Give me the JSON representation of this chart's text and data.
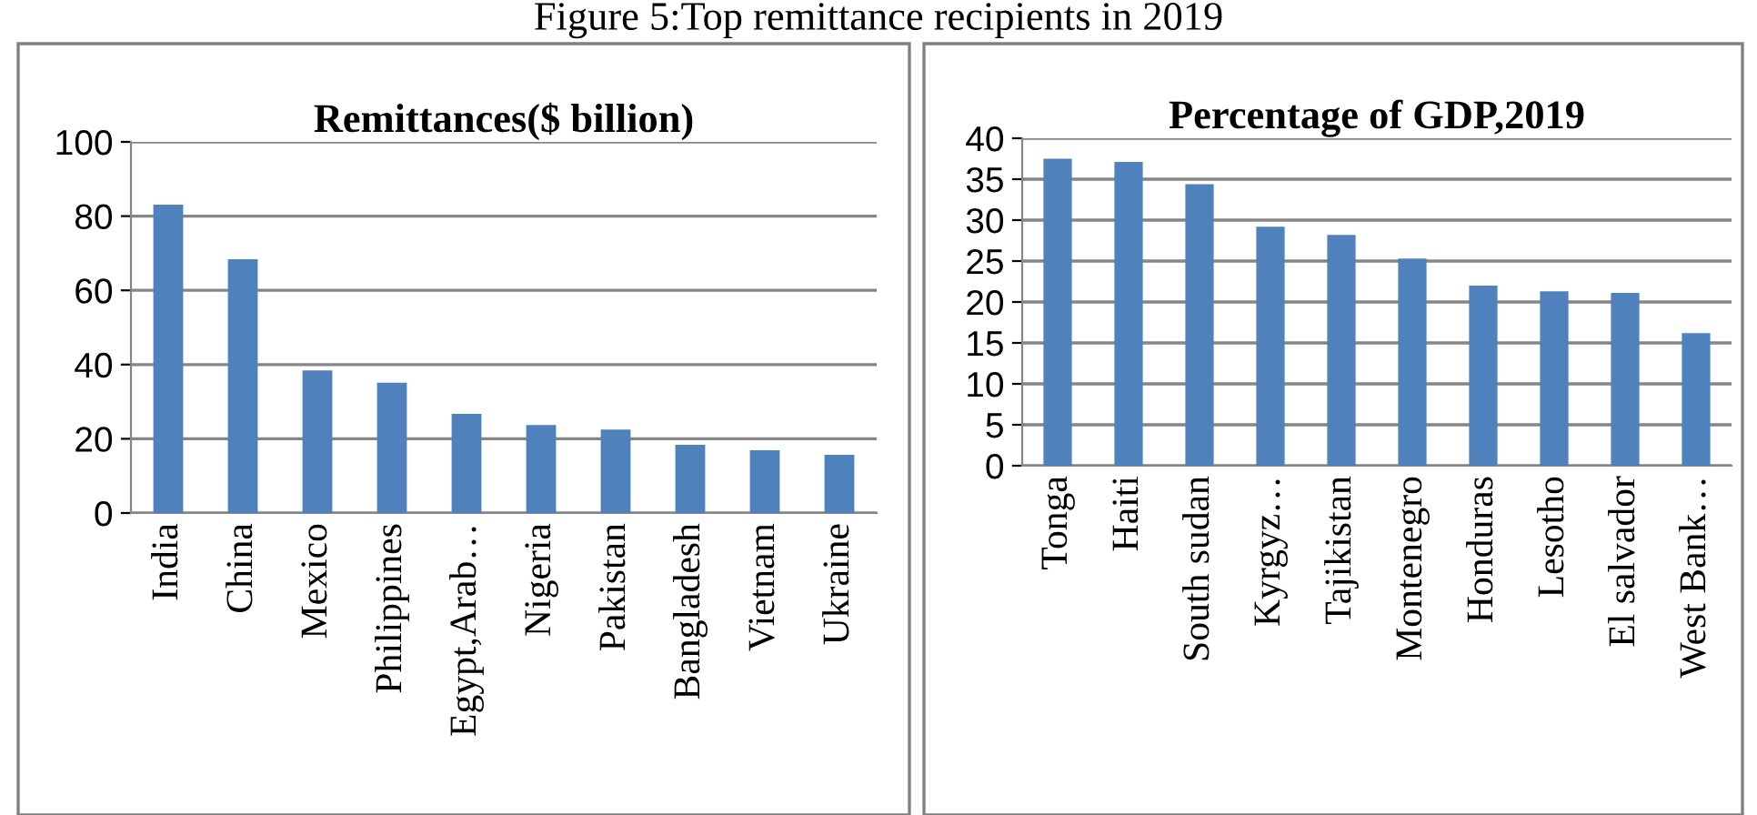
{
  "chart_data": [
    {
      "type": "bar",
      "title": "Remittances($ billion)",
      "annotations": [
        "Figure 5:Top remittance recipients in 2019"
      ],
      "categories": [
        "India",
        "China",
        "Mexico",
        "Philippines",
        "Egypt,Arab…",
        "Nigeria",
        "Pakistan",
        "Bangladesh",
        "Vietnam",
        "Ukraine"
      ],
      "values": [
        83.1,
        68.4,
        38.4,
        35.1,
        26.7,
        23.7,
        22.5,
        18.4,
        16.9,
        15.7
      ],
      "color": "#4f81bd",
      "ylim": [
        0,
        100
      ],
      "yticks": [
        0,
        20,
        40,
        60,
        80,
        100
      ],
      "grid": "y",
      "legend": false
    },
    {
      "type": "bar",
      "title": "Percentage of GDP,2019",
      "categories": [
        "Tonga",
        "Haiti",
        "South sudan",
        "Kyrgyz…",
        "Tajikistan",
        "Montenegro",
        "Honduras",
        "Lesotho",
        "El salvador",
        "West Bank…"
      ],
      "values": [
        37.5,
        37.1,
        34.4,
        29.2,
        28.2,
        25.3,
        22.0,
        21.3,
        21.1,
        16.2
      ],
      "color": "#4f81bd",
      "ylim": [
        0,
        40
      ],
      "yticks": [
        0,
        5,
        10,
        15,
        20,
        25,
        30,
        35,
        40
      ],
      "grid": "y",
      "legend": false
    }
  ]
}
